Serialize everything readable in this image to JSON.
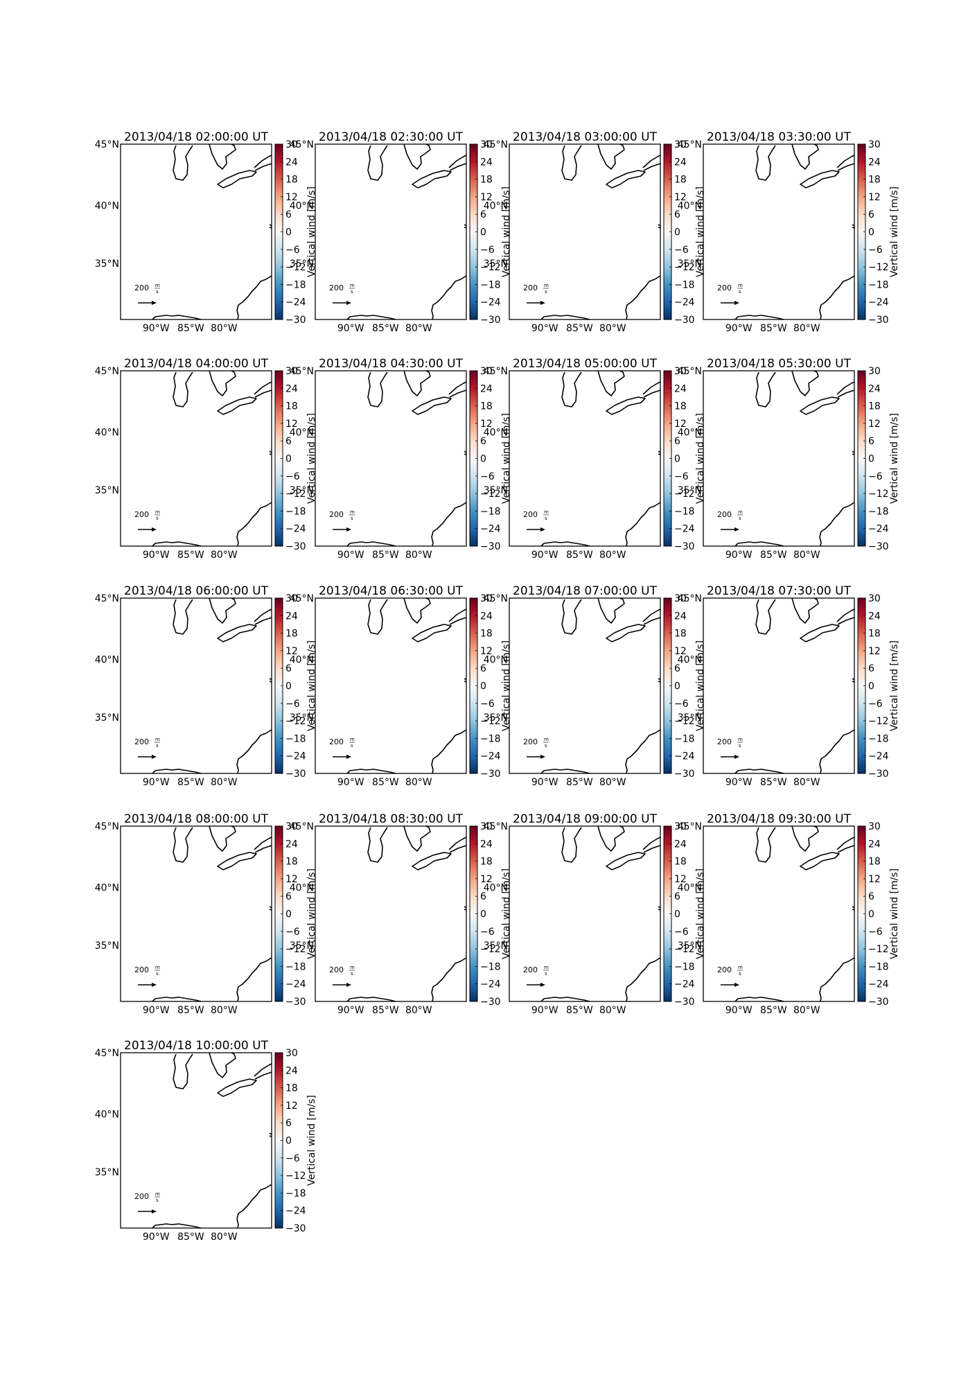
{
  "panel_titles": [
    "2013/04/18 02:00:00 UT",
    "2013/04/18 02:30:00 UT",
    "2013/04/18 03:00:00 UT",
    "2013/04/18 03:30:00 UT",
    "2013/04/18 04:00:00 UT",
    "2013/04/18 04:30:00 UT",
    "2013/04/18 05:00:00 UT",
    "2013/04/18 05:30:00 UT",
    "2013/04/18 06:00:00 UT",
    "2013/04/18 06:30:00 UT",
    "2013/04/18 07:00:00 UT",
    "2013/04/18 07:30:00 UT",
    "2013/04/18 08:00:00 UT",
    "2013/04/18 08:30:00 UT",
    "2013/04/18 09:00:00 UT",
    "2013/04/18 09:30:00 UT",
    "2013/04/18 10:00:00 UT"
  ],
  "lat_ticks": [
    "45°N",
    "40°N",
    "35°N"
  ],
  "lon_ticks": [
    "90°W",
    "85°W",
    "80°W"
  ],
  "colorbar": {
    "label": "Vertical wind [m/s]",
    "ticks": [
      "30",
      "24",
      "18",
      "12",
      "6",
      "0",
      "−6",
      "−12",
      "−18",
      "−24",
      "−30"
    ],
    "range": [
      -30,
      30
    ],
    "colormap": [
      "#67001f",
      "#b2182b",
      "#d6604d",
      "#f4a582",
      "#fddbc7",
      "#f7f7f7",
      "#d1e5f0",
      "#92c5de",
      "#4393c3",
      "#2166ac",
      "#053061"
    ]
  },
  "reference_arrow": {
    "value": "200",
    "unit_numerator": "m",
    "unit_denominator": "s"
  }
}
